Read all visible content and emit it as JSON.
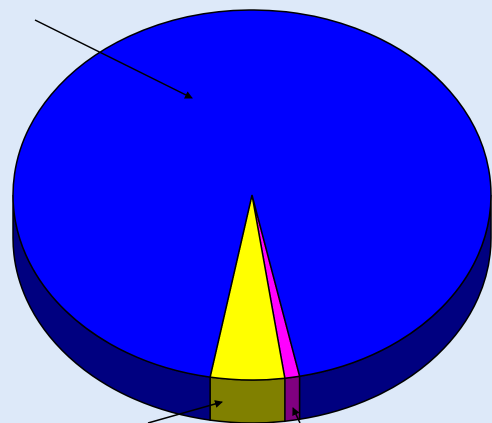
{
  "chart_data": {
    "type": "pie",
    "values": [
      1,
      5,
      94
    ],
    "colors": [
      "#ff00ff",
      "#ffff00",
      "#0000ff"
    ],
    "side_colors": [
      "#800080",
      "#808000",
      "#000080"
    ],
    "start_angle": 78.5,
    "three_d": true
  }
}
